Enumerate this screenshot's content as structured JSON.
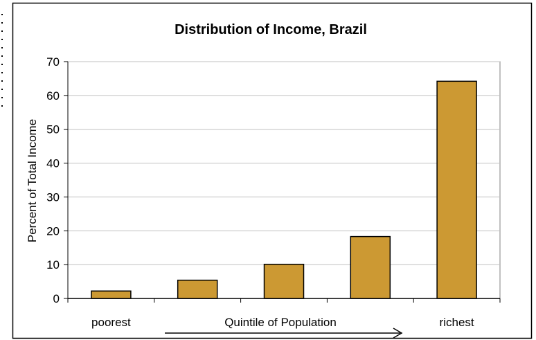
{
  "chart_data": {
    "type": "bar",
    "title": "Distribution of Income, Brazil",
    "ylabel": "Percent of Total Income",
    "xlabel": "Quintile of Population",
    "categories": [
      "poorest",
      "",
      "",
      "",
      "richest"
    ],
    "values": [
      2.2,
      5.4,
      10.1,
      18.3,
      64.2
    ],
    "ylim": [
      0,
      70
    ],
    "yticks": [
      "0",
      "10",
      "20",
      "30",
      "40",
      "50",
      "60",
      "70"
    ],
    "grid": true,
    "bar_color": "#CC9933",
    "grid_color": "#C0C0C0",
    "arrow": "arrow pointing from poorest toward richest under the x-axis label"
  }
}
